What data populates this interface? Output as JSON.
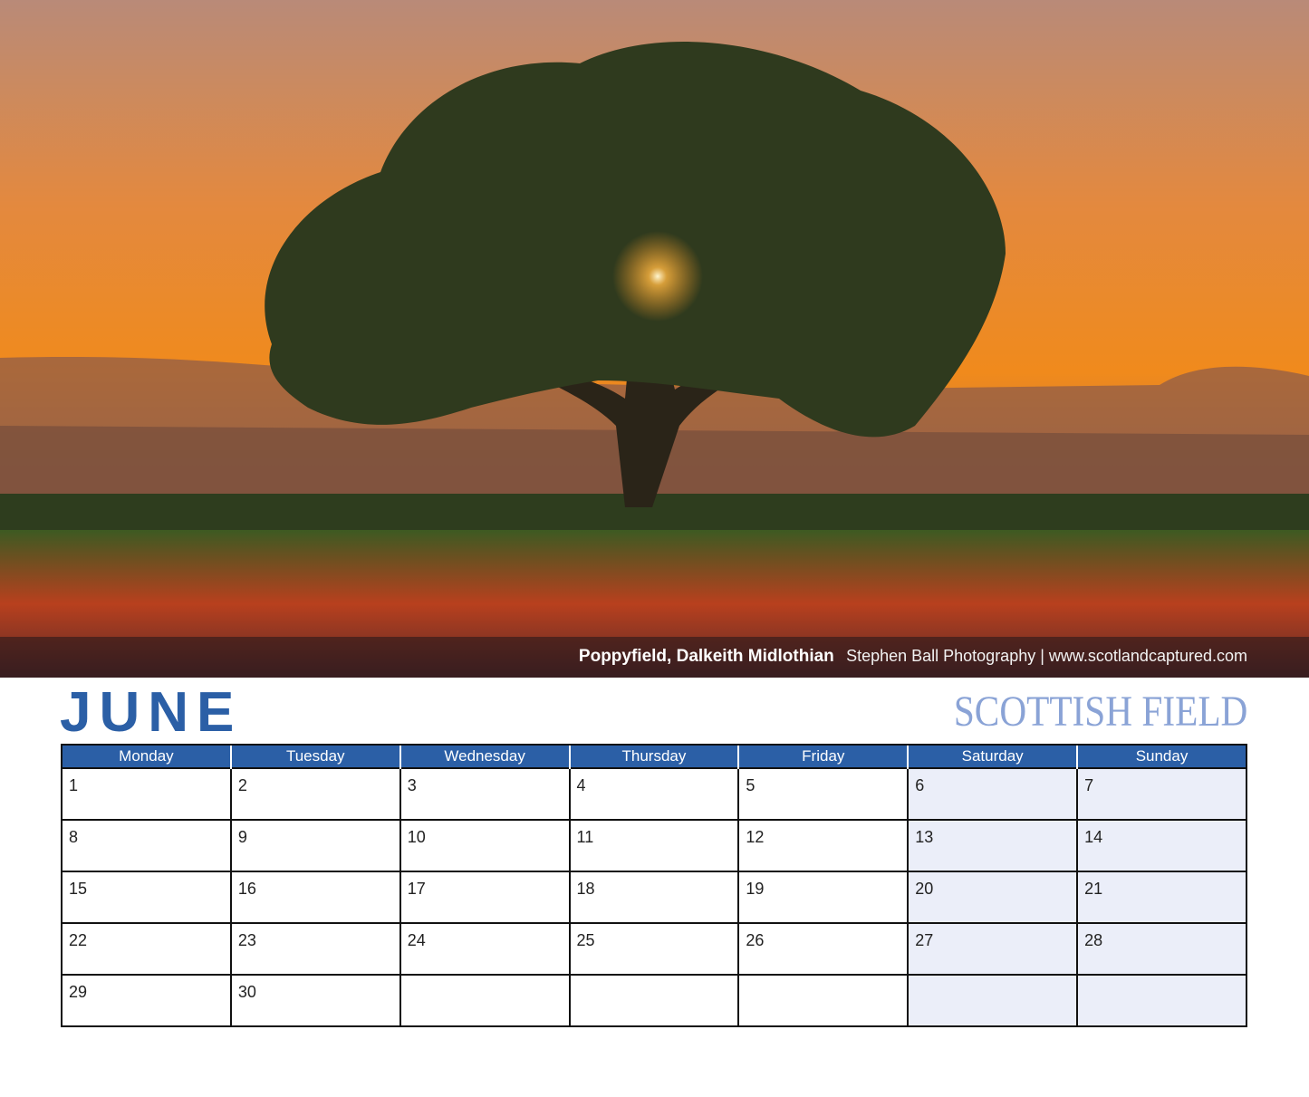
{
  "photo": {
    "caption_place": "Poppyfield, Dalkeith Midlothian",
    "caption_credit": "Stephen Ball Photography | www.scotlandcaptured.com"
  },
  "month": "JUNE",
  "brand": "SCOTTISH FIELD",
  "colors": {
    "accent": "#2b5fa6",
    "brand": "#8aa3d6",
    "weekend_fill": "#ebeef9"
  },
  "weekdays": [
    "Monday",
    "Tuesday",
    "Wednesday",
    "Thursday",
    "Friday",
    "Saturday",
    "Sunday"
  ],
  "weeks": [
    [
      "1",
      "2",
      "3",
      "4",
      "5",
      "6",
      "7"
    ],
    [
      "8",
      "9",
      "10",
      "11",
      "12",
      "13",
      "14"
    ],
    [
      "15",
      "16",
      "17",
      "18",
      "19",
      "20",
      "21"
    ],
    [
      "22",
      "23",
      "24",
      "25",
      "26",
      "27",
      "28"
    ],
    [
      "29",
      "30",
      "",
      "",
      "",
      "",
      ""
    ]
  ]
}
